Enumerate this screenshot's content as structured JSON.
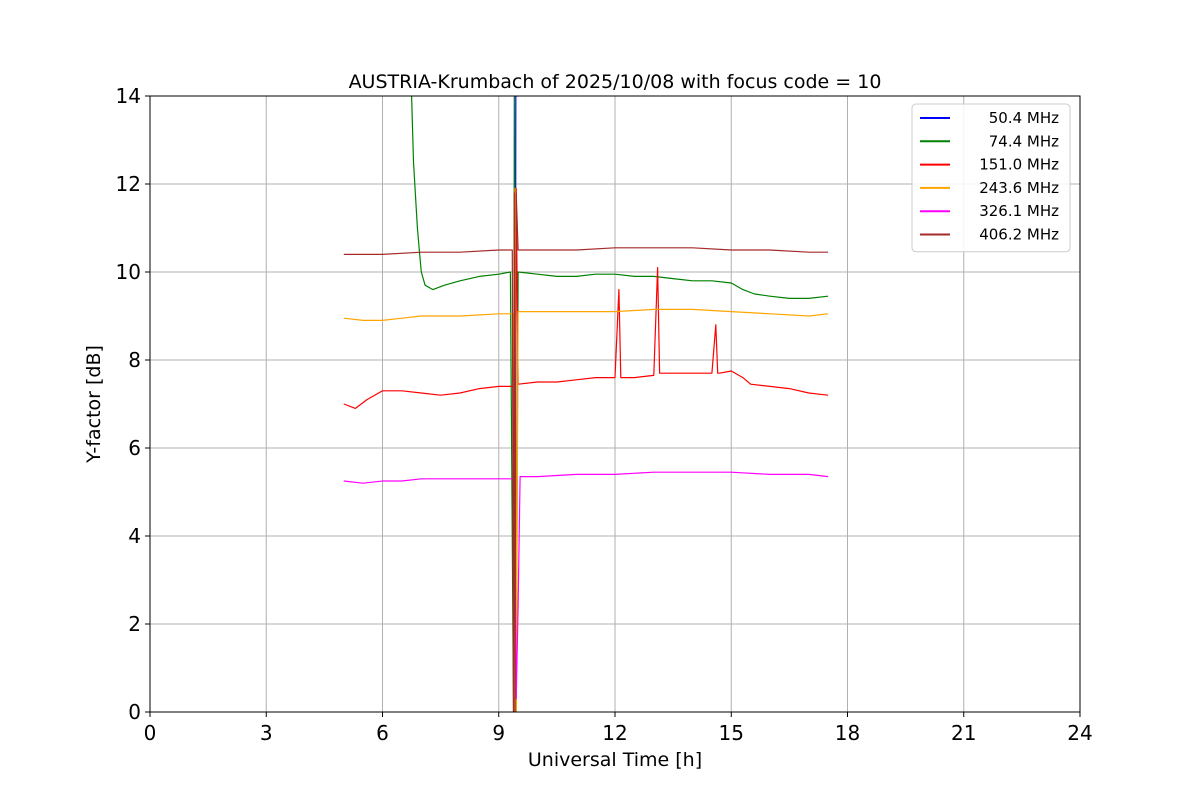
{
  "chart_data": {
    "type": "line",
    "title": "AUSTRIA-Krumbach of 2025/10/08 with focus code = 10",
    "xlabel": "Universal Time [h]",
    "ylabel": "Y-factor [dB]",
    "xlim": [
      0,
      24
    ],
    "ylim": [
      0,
      14
    ],
    "xticks": [
      0,
      3,
      6,
      9,
      12,
      15,
      18,
      21,
      24
    ],
    "yticks": [
      0,
      2,
      4,
      6,
      8,
      10,
      12,
      14
    ],
    "grid": true,
    "legend_position": "top-right",
    "series": [
      {
        "name": "50.4 MHz",
        "color": "#0000ff",
        "x": [
          9.42,
          9.43,
          9.44,
          9.45,
          9.46,
          9.47,
          9.48,
          9.5
        ],
        "y": [
          0,
          6,
          14,
          14,
          14,
          14,
          14,
          14
        ]
      },
      {
        "name": "74.4 MHz",
        "color": "#008000",
        "x": [
          6.75,
          6.8,
          6.9,
          6.95,
          7.0,
          7.1,
          7.3,
          7.6,
          8.0,
          8.5,
          9.0,
          9.3,
          9.38,
          9.4,
          9.45,
          9.5,
          10.0,
          10.5,
          11.0,
          11.5,
          12.0,
          12.5,
          13.0,
          13.5,
          14.0,
          14.5,
          15.0,
          15.3,
          15.6,
          16.0,
          16.5,
          17.0,
          17.5
        ],
        "y": [
          14,
          12.5,
          11,
          10.5,
          10.0,
          9.7,
          9.6,
          9.7,
          9.8,
          9.9,
          9.95,
          10.0,
          0,
          14,
          0,
          10.0,
          9.95,
          9.9,
          9.9,
          9.95,
          9.95,
          9.9,
          9.9,
          9.85,
          9.8,
          9.8,
          9.75,
          9.6,
          9.5,
          9.45,
          9.4,
          9.4,
          9.45
        ]
      },
      {
        "name": "151.0 MHz",
        "color": "#ff0000",
        "x": [
          5.0,
          5.3,
          5.6,
          6.0,
          6.5,
          7.0,
          7.5,
          8.0,
          8.5,
          9.0,
          9.3,
          9.4,
          9.42,
          9.45,
          9.5,
          10.0,
          10.5,
          11.0,
          11.5,
          12.0,
          12.1,
          12.15,
          12.2,
          12.5,
          13.0,
          13.1,
          13.15,
          13.2,
          13.5,
          14.0,
          14.5,
          14.6,
          14.65,
          14.7,
          15.0,
          15.3,
          15.5,
          16.0,
          16.5,
          17.0,
          17.5
        ],
        "y": [
          7.0,
          6.9,
          7.1,
          7.3,
          7.3,
          7.25,
          7.2,
          7.25,
          7.35,
          7.4,
          7.4,
          7.4,
          0,
          11.9,
          7.45,
          7.5,
          7.5,
          7.55,
          7.6,
          7.6,
          9.6,
          7.6,
          7.6,
          7.6,
          7.65,
          10.1,
          7.7,
          7.7,
          7.7,
          7.7,
          7.7,
          8.8,
          7.7,
          7.7,
          7.75,
          7.6,
          7.45,
          7.4,
          7.35,
          7.25,
          7.2
        ]
      },
      {
        "name": "243.6 MHz",
        "color": "#ffa500",
        "x": [
          5.0,
          5.5,
          6.0,
          6.5,
          7.0,
          8.0,
          9.0,
          9.38,
          9.4,
          9.42,
          9.45,
          9.5,
          10.0,
          11.0,
          12.0,
          13.0,
          14.0,
          15.0,
          16.0,
          17.0,
          17.5
        ],
        "y": [
          8.95,
          8.9,
          8.9,
          8.95,
          9.0,
          9.0,
          9.05,
          9.05,
          0,
          11.9,
          0,
          9.1,
          9.1,
          9.1,
          9.1,
          9.15,
          9.15,
          9.1,
          9.05,
          9.0,
          9.05
        ]
      },
      {
        "name": "326.1 MHz",
        "color": "#ff00ff",
        "x": [
          5.0,
          5.5,
          6.0,
          6.5,
          7.0,
          8.0,
          9.0,
          9.4,
          9.45,
          9.5,
          9.55,
          10.0,
          11.0,
          12.0,
          13.0,
          14.0,
          15.0,
          16.0,
          17.0,
          17.5
        ],
        "y": [
          5.25,
          5.2,
          5.25,
          5.25,
          5.3,
          5.3,
          5.3,
          5.3,
          0.3,
          2.4,
          5.35,
          5.35,
          5.4,
          5.4,
          5.45,
          5.45,
          5.45,
          5.4,
          5.4,
          5.35
        ]
      },
      {
        "name": "406.2 MHz",
        "color": "#a52a2a",
        "x": [
          5.0,
          6.0,
          7.0,
          8.0,
          9.0,
          9.35,
          9.38,
          9.4,
          9.42,
          9.45,
          9.5,
          10.0,
          11.0,
          12.0,
          13.0,
          14.0,
          15.0,
          16.0,
          17.0,
          17.5
        ],
        "y": [
          10.4,
          10.4,
          10.45,
          10.45,
          10.5,
          10.5,
          0,
          11.8,
          0,
          11.8,
          10.5,
          10.5,
          10.5,
          10.55,
          10.55,
          10.55,
          10.5,
          10.5,
          10.45,
          10.45
        ]
      }
    ]
  }
}
